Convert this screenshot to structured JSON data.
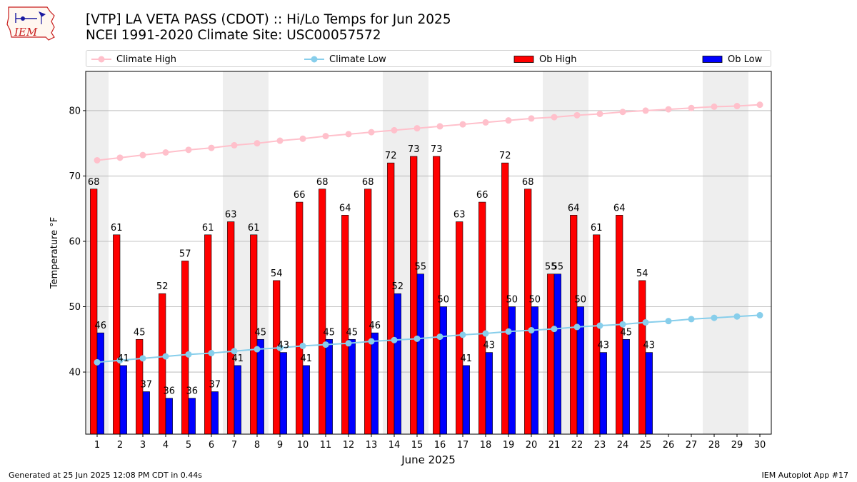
{
  "title_line1": "[VTP] LA VETA PASS (CDOT) :: Hi/Lo Temps for Jun 2025",
  "title_line2": "NCEI 1991-2020 Climate Site: USC00057572",
  "logo_text": "IEM",
  "footer_left": "Generated at 25 Jun 2025 12:08 PM CDT in 0.44s",
  "footer_right": "IEM Autoplot App #17",
  "colors": {
    "ob_high": "#ff0000",
    "ob_low": "#0000ff",
    "climate_high": "#ffc0cb",
    "climate_low": "#87ceeb",
    "weekend_band": "#eeeeee",
    "grid": "#b0b0b0"
  },
  "chart_data": {
    "type": "bar",
    "xlabel": "June 2025",
    "ylabel": "Temperature °F",
    "ylim": [
      30.5,
      86
    ],
    "yticks": [
      40,
      50,
      60,
      70,
      80
    ],
    "grid": "y",
    "legend_position": "top",
    "x": [
      1,
      2,
      3,
      4,
      5,
      6,
      7,
      8,
      9,
      10,
      11,
      12,
      13,
      14,
      15,
      16,
      17,
      18,
      19,
      20,
      21,
      22,
      23,
      24,
      25,
      26,
      27,
      28,
      29,
      30
    ],
    "weekend_days": [
      1,
      7,
      8,
      14,
      15,
      21,
      22,
      28,
      29
    ],
    "series": [
      {
        "name": "Climate High",
        "kind": "line",
        "values": [
          72.4,
          72.8,
          73.2,
          73.6,
          74.0,
          74.3,
          74.7,
          75.0,
          75.4,
          75.7,
          76.1,
          76.4,
          76.7,
          77.0,
          77.3,
          77.6,
          77.9,
          78.2,
          78.5,
          78.8,
          79.0,
          79.3,
          79.5,
          79.8,
          80.0,
          80.2,
          80.4,
          80.6,
          80.7,
          80.9
        ]
      },
      {
        "name": "Climate Low",
        "kind": "line",
        "values": [
          41.5,
          41.8,
          42.1,
          42.4,
          42.7,
          42.9,
          43.2,
          43.5,
          43.7,
          44.0,
          44.2,
          44.4,
          44.7,
          44.9,
          45.1,
          45.4,
          45.7,
          45.9,
          46.2,
          46.4,
          46.6,
          46.9,
          47.1,
          47.3,
          47.6,
          47.8,
          48.1,
          48.3,
          48.5,
          48.7
        ]
      },
      {
        "name": "Ob High",
        "kind": "bar",
        "values": [
          68,
          61,
          45,
          52,
          57,
          61,
          63,
          61,
          54,
          66,
          68,
          64,
          68,
          72,
          73,
          73,
          63,
          66,
          72,
          68,
          55,
          64,
          61,
          64,
          54,
          null,
          null,
          null,
          null,
          null
        ]
      },
      {
        "name": "Ob Low",
        "kind": "bar",
        "values": [
          46,
          41,
          37,
          36,
          36,
          37,
          41,
          45,
          43,
          41,
          45,
          45,
          46,
          52,
          55,
          50,
          41,
          43,
          50,
          50,
          55,
          50,
          43,
          45,
          43,
          null,
          null,
          null,
          null,
          null
        ]
      }
    ]
  }
}
